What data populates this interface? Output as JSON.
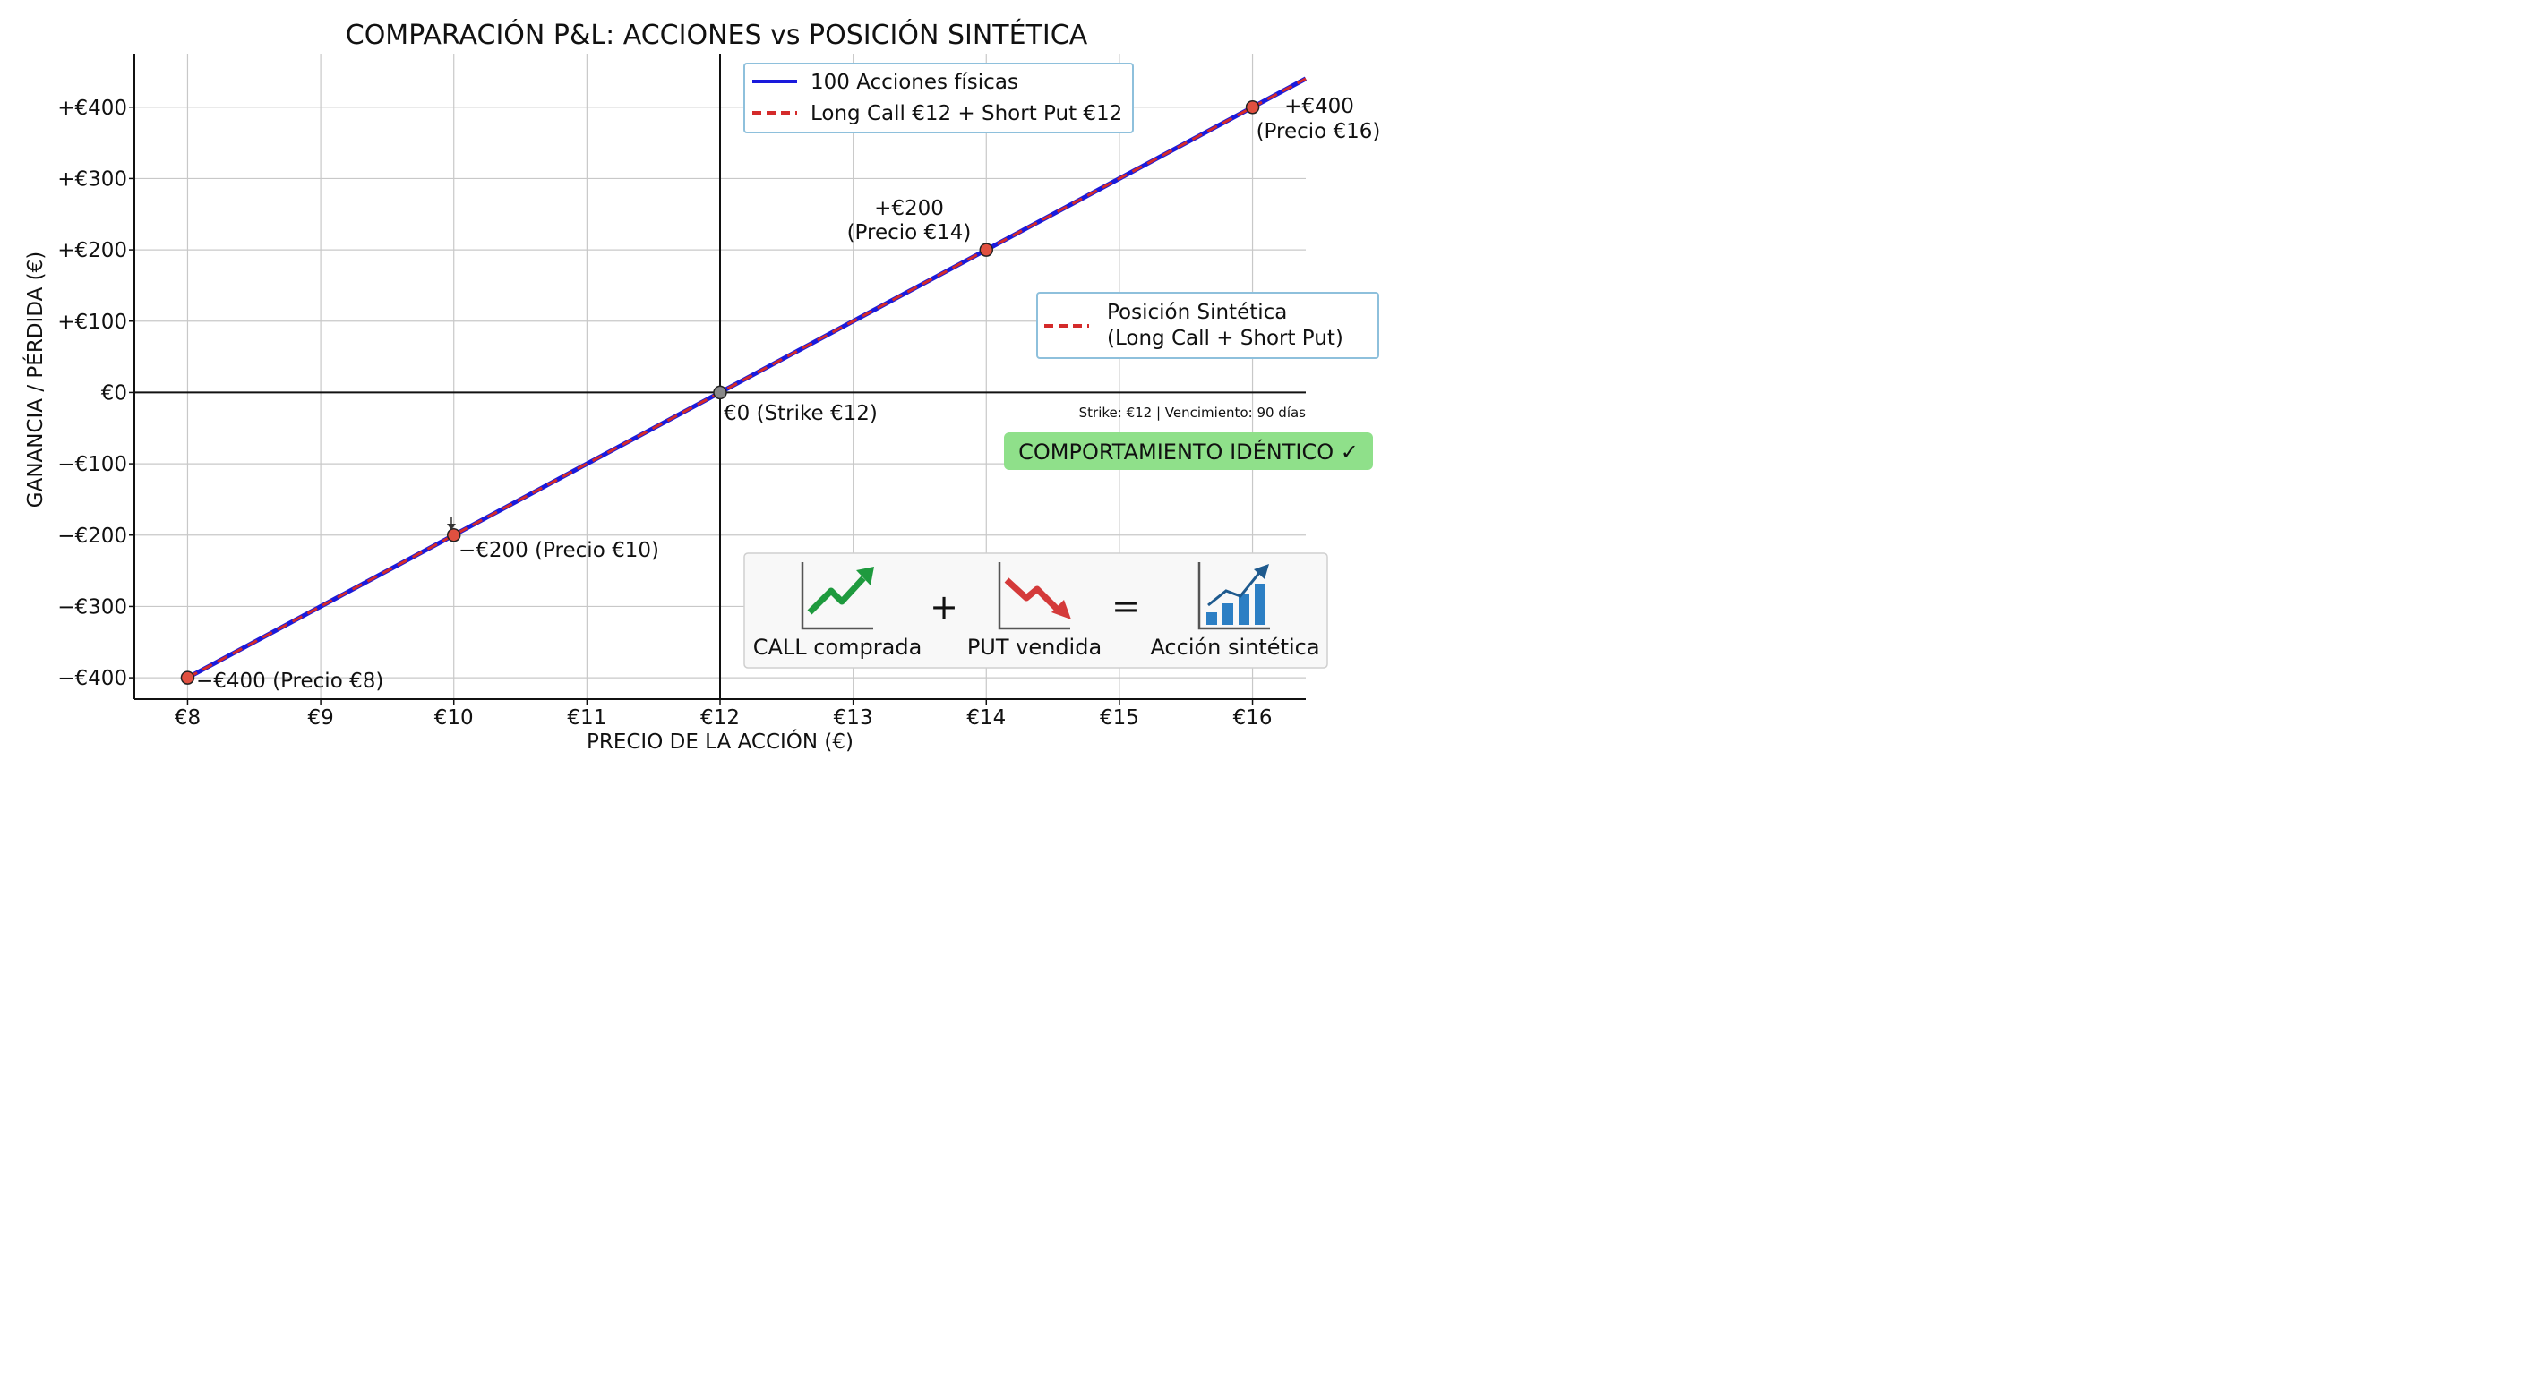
{
  "chart_data": {
    "type": "line",
    "title": "COMPARACIÓN P&L: ACCIONES vs POSICIÓN SINTÉTICA",
    "xlabel": "PRECIO DE LA ACCIÓN (€)",
    "ylabel": "GANANCIA / PÉRDIDA (€)",
    "xlim": [
      7.6,
      16.4
    ],
    "ylim": [
      -430,
      475
    ],
    "x_ticks": [
      8,
      9,
      10,
      11,
      12,
      13,
      14,
      15,
      16
    ],
    "x_tick_labels": [
      "€8",
      "€9",
      "€10",
      "€11",
      "€12",
      "€13",
      "€14",
      "€15",
      "€16"
    ],
    "y_ticks": [
      -400,
      -300,
      -200,
      -100,
      0,
      100,
      200,
      300,
      400
    ],
    "y_tick_labels": [
      "−€400",
      "−€300",
      "−€200",
      "−€100",
      "€0",
      "+€100",
      "+€200",
      "+€300",
      "+€400"
    ],
    "grid": true,
    "series": [
      {
        "name": "100 Acciones físicas",
        "color": "#1a1adc",
        "style": "solid",
        "x": [
          8,
          16.4
        ],
        "y": [
          -400,
          440
        ]
      },
      {
        "name": "Long Call €12 + Short Put €12",
        "color": "#d42a2a",
        "style": "dashed",
        "x": [
          8,
          16.4
        ],
        "y": [
          -400,
          440
        ]
      }
    ],
    "highlight_points": [
      {
        "x": 8,
        "y": -400,
        "color": "#e05040"
      },
      {
        "x": 10,
        "y": -200,
        "color": "#e05040"
      },
      {
        "x": 12,
        "y": 0,
        "color": "#888888"
      },
      {
        "x": 14,
        "y": 200,
        "color": "#e05040"
      },
      {
        "x": 16,
        "y": 400,
        "color": "#e05040"
      }
    ],
    "annotations": [
      "−€400 (Precio €8)",
      "−€200 (Precio €10)",
      "€0 (Strike €12)",
      "+€200",
      "(Precio €14)",
      "+€400",
      "(Precio €16)"
    ],
    "legend_placement": "top-right",
    "secondary_legend": [
      "Posición Sintética",
      "(Long Call + Short Put)"
    ],
    "note": "Strike: €12 | Vencimiento: 90 días",
    "badge": "COMPORTAMIENTO IDÉNTICO ✓",
    "badge_color": "#8fe08a",
    "diagram": {
      "call_label": "CALL comprada",
      "plus": "+",
      "put_label": "PUT vendida",
      "equals": "=",
      "result_label": "Acción sintética",
      "icons": [
        "call-up-trend-icon",
        "put-down-trend-icon",
        "bar-chart-up-icon"
      ]
    }
  }
}
